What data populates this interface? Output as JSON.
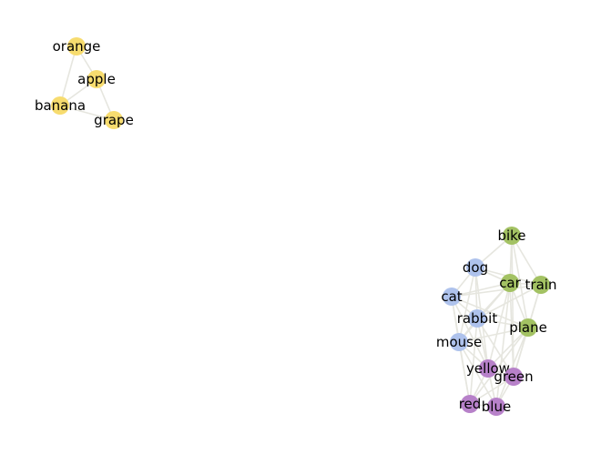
{
  "graph": {
    "colors": {
      "fruit": "#f7dc6f",
      "animal": "#aec2ec",
      "vehicle": "#a3c263",
      "color": "#b781c9",
      "edge": "#e6e6df"
    },
    "nodes": [
      {
        "id": "orange",
        "label": "orange",
        "group": "fruit"
      },
      {
        "id": "apple",
        "label": "apple",
        "group": "fruit"
      },
      {
        "id": "banana",
        "label": "banana",
        "group": "fruit"
      },
      {
        "id": "grape",
        "label": "grape",
        "group": "fruit"
      },
      {
        "id": "bike",
        "label": "bike",
        "group": "vehicle"
      },
      {
        "id": "car",
        "label": "car",
        "group": "vehicle"
      },
      {
        "id": "train",
        "label": "train",
        "group": "vehicle"
      },
      {
        "id": "plane",
        "label": "plane",
        "group": "vehicle"
      },
      {
        "id": "dog",
        "label": "dog",
        "group": "animal"
      },
      {
        "id": "cat",
        "label": "cat",
        "group": "animal"
      },
      {
        "id": "rabbit",
        "label": "rabbit",
        "group": "animal"
      },
      {
        "id": "mouse",
        "label": "mouse",
        "group": "animal"
      },
      {
        "id": "yellow",
        "label": "yellow",
        "group": "color"
      },
      {
        "id": "green",
        "label": "green",
        "group": "color"
      },
      {
        "id": "red",
        "label": "red",
        "group": "color"
      },
      {
        "id": "blue",
        "label": "blue",
        "group": "color"
      }
    ],
    "edges": [
      [
        "orange",
        "apple"
      ],
      [
        "orange",
        "banana"
      ],
      [
        "apple",
        "banana"
      ],
      [
        "apple",
        "grape"
      ],
      [
        "banana",
        "grape"
      ],
      [
        "bike",
        "car"
      ],
      [
        "bike",
        "train"
      ],
      [
        "bike",
        "plane"
      ],
      [
        "car",
        "train"
      ],
      [
        "car",
        "plane"
      ],
      [
        "train",
        "plane"
      ],
      [
        "dog",
        "cat"
      ],
      [
        "dog",
        "rabbit"
      ],
      [
        "dog",
        "mouse"
      ],
      [
        "cat",
        "rabbit"
      ],
      [
        "cat",
        "mouse"
      ],
      [
        "rabbit",
        "mouse"
      ],
      [
        "yellow",
        "green"
      ],
      [
        "yellow",
        "red"
      ],
      [
        "yellow",
        "blue"
      ],
      [
        "green",
        "red"
      ],
      [
        "green",
        "blue"
      ],
      [
        "red",
        "blue"
      ],
      [
        "dog",
        "bike"
      ],
      [
        "dog",
        "car"
      ],
      [
        "cat",
        "car"
      ],
      [
        "cat",
        "train"
      ],
      [
        "rabbit",
        "car"
      ],
      [
        "rabbit",
        "plane"
      ],
      [
        "mouse",
        "plane"
      ],
      [
        "mouse",
        "car"
      ],
      [
        "rabbit",
        "train"
      ],
      [
        "dog",
        "train"
      ],
      [
        "cat",
        "plane"
      ],
      [
        "yellow",
        "plane"
      ],
      [
        "yellow",
        "car"
      ],
      [
        "green",
        "plane"
      ],
      [
        "green",
        "train"
      ],
      [
        "red",
        "mouse"
      ],
      [
        "red",
        "rabbit"
      ],
      [
        "blue",
        "mouse"
      ],
      [
        "blue",
        "plane"
      ],
      [
        "yellow",
        "mouse"
      ],
      [
        "yellow",
        "rabbit"
      ],
      [
        "green",
        "car"
      ],
      [
        "red",
        "cat"
      ],
      [
        "blue",
        "rabbit"
      ],
      [
        "yellow",
        "cat"
      ],
      [
        "green",
        "rabbit"
      ],
      [
        "blue",
        "car"
      ],
      [
        "red",
        "plane"
      ],
      [
        "yellow",
        "dog"
      ],
      [
        "green",
        "bike"
      ]
    ]
  }
}
